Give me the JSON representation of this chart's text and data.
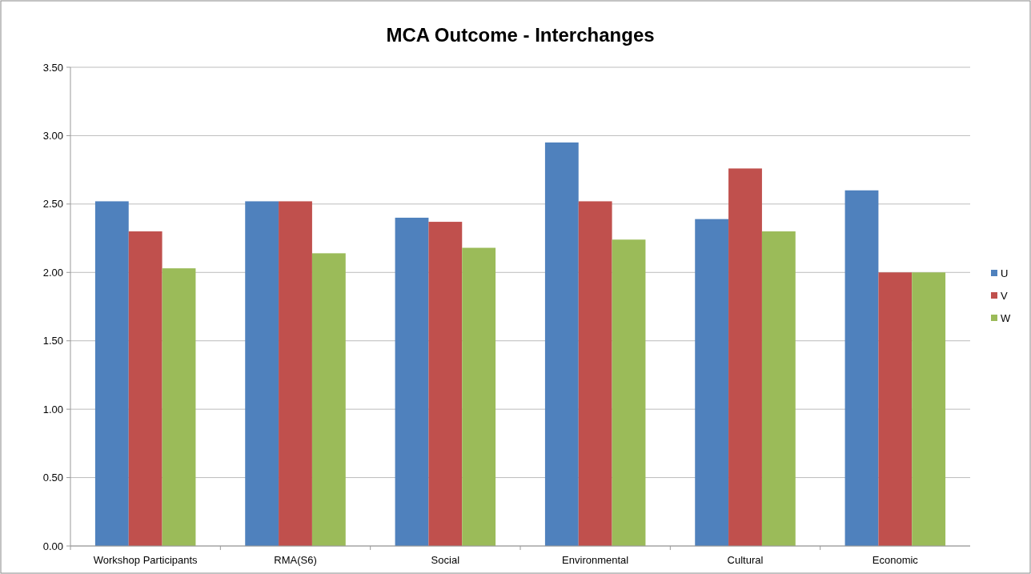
{
  "chart_data": {
    "type": "bar",
    "title": "MCA Outcome - Interchanges",
    "categories": [
      "Workshop Participants",
      "RMA(S6)",
      "Social",
      "Environmental",
      "Cultural",
      "Economic"
    ],
    "series": [
      {
        "name": "U",
        "color": "#4f81bd",
        "values": [
          2.52,
          2.52,
          2.4,
          2.95,
          2.39,
          2.6
        ]
      },
      {
        "name": "V",
        "color": "#c0504d",
        "values": [
          2.3,
          2.52,
          2.37,
          2.52,
          2.76,
          2.0
        ]
      },
      {
        "name": "W",
        "color": "#9bbb59",
        "values": [
          2.03,
          2.14,
          2.18,
          2.24,
          2.3,
          2.0
        ]
      }
    ],
    "ylim": [
      0,
      3.5
    ],
    "yticks": [
      {
        "value": 0,
        "label": "0.00"
      },
      {
        "value": 0.5,
        "label": "0.50"
      },
      {
        "value": 1,
        "label": "1.00"
      },
      {
        "value": 1.5,
        "label": "1.50"
      },
      {
        "value": 2,
        "label": "2.00"
      },
      {
        "value": 2.5,
        "label": "2.50"
      },
      {
        "value": 3,
        "label": "3.00"
      },
      {
        "value": 3.5,
        "label": "3.50"
      }
    ],
    "grid": "y",
    "legend": "right"
  }
}
